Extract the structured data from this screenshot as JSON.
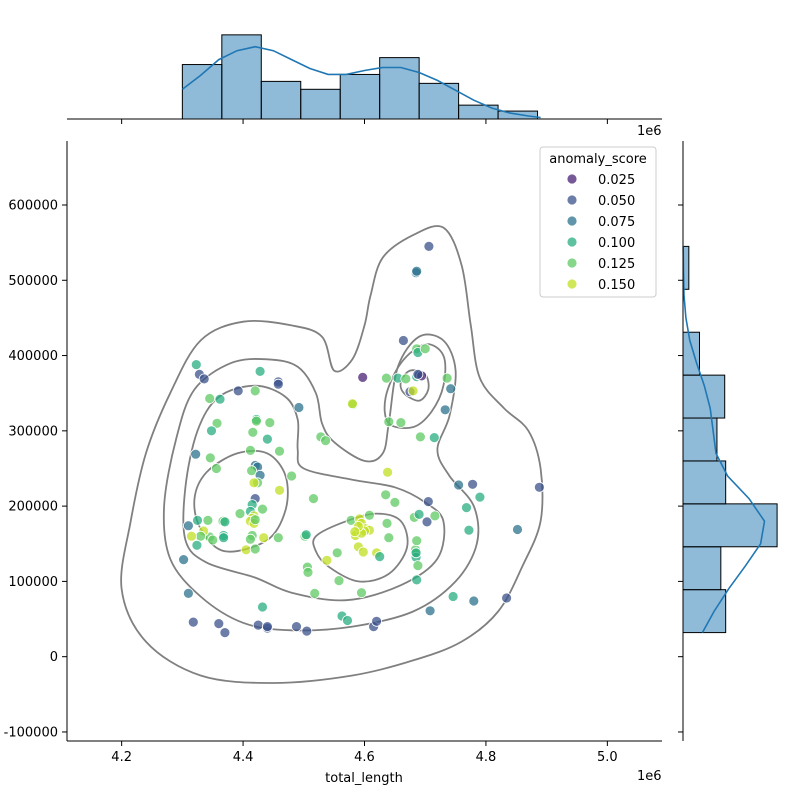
{
  "chart_data": {
    "type": "scatter",
    "subtype": "jointplot with kde contours and marginal histograms",
    "xlabel": "total_length",
    "ylabel": "",
    "x_offset_label": "1e6",
    "xlim": [
      4.11,
      5.09
    ],
    "ylim": [
      -112000,
      685000
    ],
    "x_ticks": [
      "4.2",
      "4.4",
      "4.6",
      "4.8",
      "5.0"
    ],
    "y_ticks": [
      "-100000",
      "0",
      "100000",
      "200000",
      "300000",
      "400000",
      "500000",
      "600000"
    ],
    "legend": {
      "title": "anomaly_score",
      "location": "top-right",
      "entries": [
        {
          "label": "0.025",
          "color": "#482173"
        },
        {
          "label": "0.050",
          "color": "#3b528b"
        },
        {
          "label": "0.075",
          "color": "#2c728e"
        },
        {
          "label": "0.100",
          "color": "#28ae80"
        },
        {
          "label": "0.125",
          "color": "#5ec962"
        },
        {
          "label": "0.150",
          "color": "#c2df23"
        }
      ]
    },
    "points": [
      [
        4.323,
        388000,
        0.1
      ],
      [
        4.328,
        375000,
        0.05
      ],
      [
        4.336,
        369000,
        0.05
      ],
      [
        4.392,
        353000,
        0.05
      ],
      [
        4.42,
        353000,
        0.125
      ],
      [
        4.428,
        379000,
        0.1
      ],
      [
        4.458,
        365000,
        0.05
      ],
      [
        4.458,
        362000,
        0.05
      ],
      [
        4.345,
        343000,
        0.125
      ],
      [
        4.357,
        310000,
        0.125
      ],
      [
        4.348,
        300000,
        0.1
      ],
      [
        4.362,
        342000,
        0.1
      ],
      [
        4.422,
        315000,
        0.1
      ],
      [
        4.422,
        313000,
        0.125
      ],
      [
        4.416,
        298000,
        0.125
      ],
      [
        4.492,
        331000,
        0.075
      ],
      [
        4.444,
        311000,
        0.125
      ],
      [
        4.528,
        292000,
        0.125
      ],
      [
        4.536,
        287000,
        0.125
      ],
      [
        4.581,
        335000,
        0.125
      ],
      [
        4.58,
        336000,
        0.15
      ],
      [
        4.44,
        289000,
        0.1
      ],
      [
        4.46,
        273000,
        0.125
      ],
      [
        4.412,
        274000,
        0.125
      ],
      [
        4.322,
        269000,
        0.075
      ],
      [
        4.346,
        264000,
        0.125
      ],
      [
        4.356,
        250000,
        0.125
      ],
      [
        4.42,
        254000,
        0.075
      ],
      [
        4.424,
        252000,
        0.075
      ],
      [
        4.414,
        247000,
        0.125
      ],
      [
        4.428,
        241000,
        0.075
      ],
      [
        4.424,
        231000,
        0.125
      ],
      [
        4.418,
        231000,
        0.15
      ],
      [
        4.42,
        210000,
        0.05
      ],
      [
        4.415,
        202000,
        0.1
      ],
      [
        4.412,
        193000,
        0.1
      ],
      [
        4.418,
        187000,
        0.15
      ],
      [
        4.415,
        184000,
        0.15
      ],
      [
        4.412,
        180000,
        0.15
      ],
      [
        4.418,
        177000,
        0.15
      ],
      [
        4.42,
        182000,
        0.125
      ],
      [
        4.395,
        190000,
        0.125
      ],
      [
        4.432,
        196000,
        0.125
      ],
      [
        4.48,
        240000,
        0.125
      ],
      [
        4.46,
        221000,
        0.15
      ],
      [
        4.516,
        210000,
        0.125
      ],
      [
        4.325,
        181000,
        0.1
      ],
      [
        4.342,
        181000,
        0.125
      ],
      [
        4.367,
        180000,
        0.125
      ],
      [
        4.37,
        179000,
        0.1
      ],
      [
        4.368,
        161000,
        0.1
      ],
      [
        4.368,
        158000,
        0.1
      ],
      [
        4.345,
        159000,
        0.125
      ],
      [
        4.335,
        167000,
        0.15
      ],
      [
        4.33,
        160000,
        0.125
      ],
      [
        4.315,
        160000,
        0.15
      ],
      [
        4.324,
        148000,
        0.1
      ],
      [
        4.31,
        174000,
        0.075
      ],
      [
        4.35,
        155000,
        0.125
      ],
      [
        4.405,
        142000,
        0.15
      ],
      [
        4.42,
        143000,
        0.125
      ],
      [
        4.415,
        161000,
        0.125
      ],
      [
        4.412,
        156000,
        0.125
      ],
      [
        4.434,
        158000,
        0.15
      ],
      [
        4.458,
        158000,
        0.125
      ],
      [
        4.502,
        160000,
        0.125
      ],
      [
        4.504,
        162000,
        0.1
      ],
      [
        4.302,
        129000,
        0.075
      ],
      [
        4.31,
        84000,
        0.075
      ],
      [
        4.318,
        46000,
        0.05
      ],
      [
        4.36,
        44000,
        0.05
      ],
      [
        4.37,
        32000,
        0.05
      ],
      [
        4.425,
        42000,
        0.05
      ],
      [
        4.432,
        66000,
        0.1
      ],
      [
        4.44,
        38000,
        0.05
      ],
      [
        4.44,
        40000,
        0.05
      ],
      [
        4.488,
        40000,
        0.05
      ],
      [
        4.505,
        34000,
        0.05
      ],
      [
        4.506,
        119000,
        0.125
      ],
      [
        4.507,
        112000,
        0.125
      ],
      [
        4.518,
        84000,
        0.125
      ],
      [
        4.538,
        128000,
        0.15
      ],
      [
        4.555,
        138000,
        0.125
      ],
      [
        4.558,
        101000,
        0.125
      ],
      [
        4.563,
        54000,
        0.1
      ],
      [
        4.572,
        48000,
        0.1
      ],
      [
        4.578,
        181000,
        0.125
      ],
      [
        4.585,
        161000,
        0.15
      ],
      [
        4.59,
        146000,
        0.15
      ],
      [
        4.592,
        183000,
        0.15
      ],
      [
        4.595,
        177000,
        0.15
      ],
      [
        4.598,
        139000,
        0.15
      ],
      [
        4.602,
        170000,
        0.15
      ],
      [
        4.608,
        168000,
        0.15
      ],
      [
        4.608,
        188000,
        0.125
      ],
      [
        4.6,
        167000,
        0.15
      ],
      [
        4.595,
        164000,
        0.15
      ],
      [
        4.59,
        173000,
        0.15
      ],
      [
        4.584,
        166000,
        0.15
      ],
      [
        4.595,
        85000,
        0.125
      ],
      [
        4.62,
        138000,
        0.15
      ],
      [
        4.625,
        133000,
        0.1
      ],
      [
        4.615,
        40000,
        0.05
      ],
      [
        4.62,
        47000,
        0.05
      ],
      [
        4.635,
        215000,
        0.125
      ],
      [
        4.638,
        245000,
        0.15
      ],
      [
        4.64,
        158000,
        0.125
      ],
      [
        4.637,
        177000,
        0.125
      ],
      [
        4.64,
        312000,
        0.125
      ],
      [
        4.636,
        370000,
        0.125
      ],
      [
        4.65,
        205000,
        0.125
      ],
      [
        4.655,
        370000,
        0.1
      ],
      [
        4.66,
        311000,
        0.125
      ],
      [
        4.668,
        369000,
        0.125
      ],
      [
        4.664,
        420000,
        0.05
      ],
      [
        4.675,
        352000,
        0.05
      ],
      [
        4.68,
        353000,
        0.15
      ],
      [
        4.682,
        185000,
        0.125
      ],
      [
        4.684,
        142000,
        0.125
      ],
      [
        4.684,
        137000,
        0.125
      ],
      [
        4.685,
        132000,
        0.1
      ],
      [
        4.685,
        138000,
        0.1
      ],
      [
        4.686,
        102000,
        0.1
      ],
      [
        4.688,
        121000,
        0.125
      ],
      [
        4.686,
        154000,
        0.125
      ],
      [
        4.69,
        189000,
        0.1
      ],
      [
        4.686,
        409000,
        0.125
      ],
      [
        4.688,
        404000,
        0.1
      ],
      [
        4.686,
        372000,
        0.1
      ],
      [
        4.69,
        374000,
        0.05
      ],
      [
        4.694,
        373000,
        0.025
      ],
      [
        4.692,
        292000,
        0.125
      ],
      [
        4.7,
        409000,
        0.125
      ],
      [
        4.705,
        206000,
        0.05
      ],
      [
        4.703,
        179000,
        0.05
      ],
      [
        4.706,
        545000,
        0.05
      ],
      [
        4.708,
        61000,
        0.075
      ],
      [
        4.716,
        187000,
        0.125
      ],
      [
        4.715,
        291000,
        0.1
      ],
      [
        4.733,
        328000,
        0.075
      ],
      [
        4.736,
        370000,
        0.125
      ],
      [
        4.742,
        356000,
        0.075
      ],
      [
        4.746,
        80000,
        0.1
      ],
      [
        4.755,
        228000,
        0.075
      ],
      [
        4.768,
        198000,
        0.1
      ],
      [
        4.772,
        168000,
        0.1
      ],
      [
        4.778,
        229000,
        0.05
      ],
      [
        4.78,
        74000,
        0.075
      ],
      [
        4.79,
        212000,
        0.1
      ],
      [
        4.834,
        78000,
        0.05
      ],
      [
        4.852,
        169000,
        0.075
      ],
      [
        4.888,
        225000,
        0.05
      ],
      [
        4.685,
        510000,
        0.075
      ],
      [
        4.686,
        512000,
        0.075
      ],
      [
        4.597,
        371000,
        0.025
      ],
      [
        4.688,
        375000,
        0.05
      ]
    ],
    "marginal_x_histogram": {
      "bin_edges": [
        4.3,
        4.365,
        4.43,
        4.495,
        4.56,
        4.625,
        4.69,
        4.755,
        4.82,
        4.885
      ],
      "heights": [
        0.55,
        0.85,
        0.38,
        0.3,
        0.45,
        0.62,
        0.36,
        0.14,
        0.08
      ],
      "kde": [
        [
          4.3,
          0.3
        ],
        [
          4.33,
          0.44
        ],
        [
          4.36,
          0.6
        ],
        [
          4.39,
          0.69
        ],
        [
          4.42,
          0.73
        ],
        [
          4.45,
          0.69
        ],
        [
          4.48,
          0.6
        ],
        [
          4.51,
          0.51
        ],
        [
          4.54,
          0.45
        ],
        [
          4.57,
          0.45
        ],
        [
          4.6,
          0.49
        ],
        [
          4.63,
          0.52
        ],
        [
          4.66,
          0.52
        ],
        [
          4.69,
          0.47
        ],
        [
          4.72,
          0.39
        ],
        [
          4.75,
          0.29
        ],
        [
          4.78,
          0.19
        ],
        [
          4.81,
          0.11
        ],
        [
          4.84,
          0.06
        ],
        [
          4.87,
          0.03
        ],
        [
          4.89,
          0.015
        ]
      ]
    },
    "marginal_y_histogram": {
      "bin_edges": [
        32000,
        89000,
        146000,
        203000,
        260000,
        317000,
        374000,
        431000,
        488000,
        545000
      ],
      "widths": [
        0.44,
        0.39,
        0.97,
        0.44,
        0.35,
        0.43,
        0.17,
        0,
        0.06
      ],
      "kde": [
        [
          32000,
          0.2
        ],
        [
          60000,
          0.32
        ],
        [
          90000,
          0.47
        ],
        [
          120000,
          0.64
        ],
        [
          150000,
          0.8
        ],
        [
          180000,
          0.84
        ],
        [
          210000,
          0.68
        ],
        [
          240000,
          0.46
        ],
        [
          270000,
          0.34
        ],
        [
          300000,
          0.31
        ],
        [
          330000,
          0.28
        ],
        [
          360000,
          0.22
        ],
        [
          390000,
          0.14
        ],
        [
          420000,
          0.07
        ],
        [
          450000,
          0.03
        ],
        [
          480000,
          0.01
        ],
        [
          510000,
          0.005
        ],
        [
          545000,
          0.002
        ]
      ]
    },
    "kde_contours": [
      [
        [
          4.45,
          -35000
        ],
        [
          4.33,
          -25000
        ],
        [
          4.24,
          20000
        ],
        [
          4.2,
          90000
        ],
        [
          4.215,
          180000
        ],
        [
          4.24,
          270000
        ],
        [
          4.28,
          350000
        ],
        [
          4.33,
          420000
        ],
        [
          4.4,
          445000
        ],
        [
          4.48,
          440000
        ],
        [
          4.53,
          425000
        ],
        [
          4.55,
          380000
        ],
        [
          4.58,
          395000
        ],
        [
          4.6,
          440000
        ],
        [
          4.61,
          480000
        ],
        [
          4.63,
          530000
        ],
        [
          4.68,
          560000
        ],
        [
          4.73,
          570000
        ],
        [
          4.76,
          520000
        ],
        [
          4.775,
          440000
        ],
        [
          4.79,
          370000
        ],
        [
          4.83,
          330000
        ],
        [
          4.87,
          300000
        ],
        [
          4.89,
          250000
        ],
        [
          4.89,
          180000
        ],
        [
          4.86,
          120000
        ],
        [
          4.82,
          60000
        ],
        [
          4.76,
          20000
        ],
        [
          4.68,
          -5000
        ],
        [
          4.58,
          -25000
        ]
      ],
      [
        [
          4.33,
          80000
        ],
        [
          4.28,
          130000
        ],
        [
          4.27,
          200000
        ],
        [
          4.29,
          290000
        ],
        [
          4.32,
          355000
        ],
        [
          4.38,
          390000
        ],
        [
          4.44,
          395000
        ],
        [
          4.49,
          385000
        ],
        [
          4.52,
          350000
        ],
        [
          4.53,
          310000
        ],
        [
          4.55,
          285000
        ],
        [
          4.6,
          260000
        ],
        [
          4.63,
          270000
        ],
        [
          4.64,
          310000
        ],
        [
          4.655,
          385000
        ],
        [
          4.69,
          425000
        ],
        [
          4.73,
          420000
        ],
        [
          4.75,
          380000
        ],
        [
          4.74,
          320000
        ],
        [
          4.72,
          275000
        ],
        [
          4.74,
          240000
        ],
        [
          4.78,
          200000
        ],
        [
          4.785,
          150000
        ],
        [
          4.75,
          100000
        ],
        [
          4.68,
          60000
        ],
        [
          4.58,
          40000
        ],
        [
          4.48,
          35000
        ],
        [
          4.4,
          45000
        ]
      ],
      [
        [
          4.34,
          125000
        ],
        [
          4.305,
          155000
        ],
        [
          4.305,
          225000
        ],
        [
          4.325,
          300000
        ],
        [
          4.36,
          345000
        ],
        [
          4.42,
          360000
        ],
        [
          4.47,
          345000
        ],
        [
          4.49,
          315000
        ],
        [
          4.49,
          275000
        ],
        [
          4.5,
          250000
        ],
        [
          4.58,
          235000
        ],
        [
          4.65,
          225000
        ],
        [
          4.7,
          205000
        ],
        [
          4.73,
          180000
        ],
        [
          4.72,
          130000
        ],
        [
          4.66,
          95000
        ],
        [
          4.57,
          75000
        ],
        [
          4.48,
          85000
        ],
        [
          4.42,
          105000
        ]
      ],
      [
        [
          4.37,
          140000
        ],
        [
          4.33,
          170000
        ],
        [
          4.32,
          210000
        ],
        [
          4.34,
          245000
        ],
        [
          4.39,
          270000
        ],
        [
          4.44,
          270000
        ],
        [
          4.47,
          240000
        ],
        [
          4.47,
          195000
        ],
        [
          4.44,
          155000
        ]
      ],
      [
        [
          4.54,
          120000
        ],
        [
          4.52,
          140000
        ],
        [
          4.52,
          160000
        ],
        [
          4.57,
          180000
        ],
        [
          4.62,
          190000
        ],
        [
          4.66,
          180000
        ],
        [
          4.67,
          145000
        ],
        [
          4.64,
          110000
        ],
        [
          4.59,
          100000
        ]
      ],
      [
        [
          4.64,
          310000
        ],
        [
          4.635,
          345000
        ],
        [
          4.66,
          390000
        ],
        [
          4.7,
          415000
        ],
        [
          4.73,
          400000
        ],
        [
          4.73,
          360000
        ],
        [
          4.71,
          325000
        ],
        [
          4.68,
          305000
        ]
      ],
      [
        [
          4.665,
          350000
        ],
        [
          4.66,
          365000
        ],
        [
          4.675,
          380000
        ],
        [
          4.7,
          375000
        ],
        [
          4.705,
          355000
        ],
        [
          4.69,
          340000
        ]
      ]
    ]
  }
}
